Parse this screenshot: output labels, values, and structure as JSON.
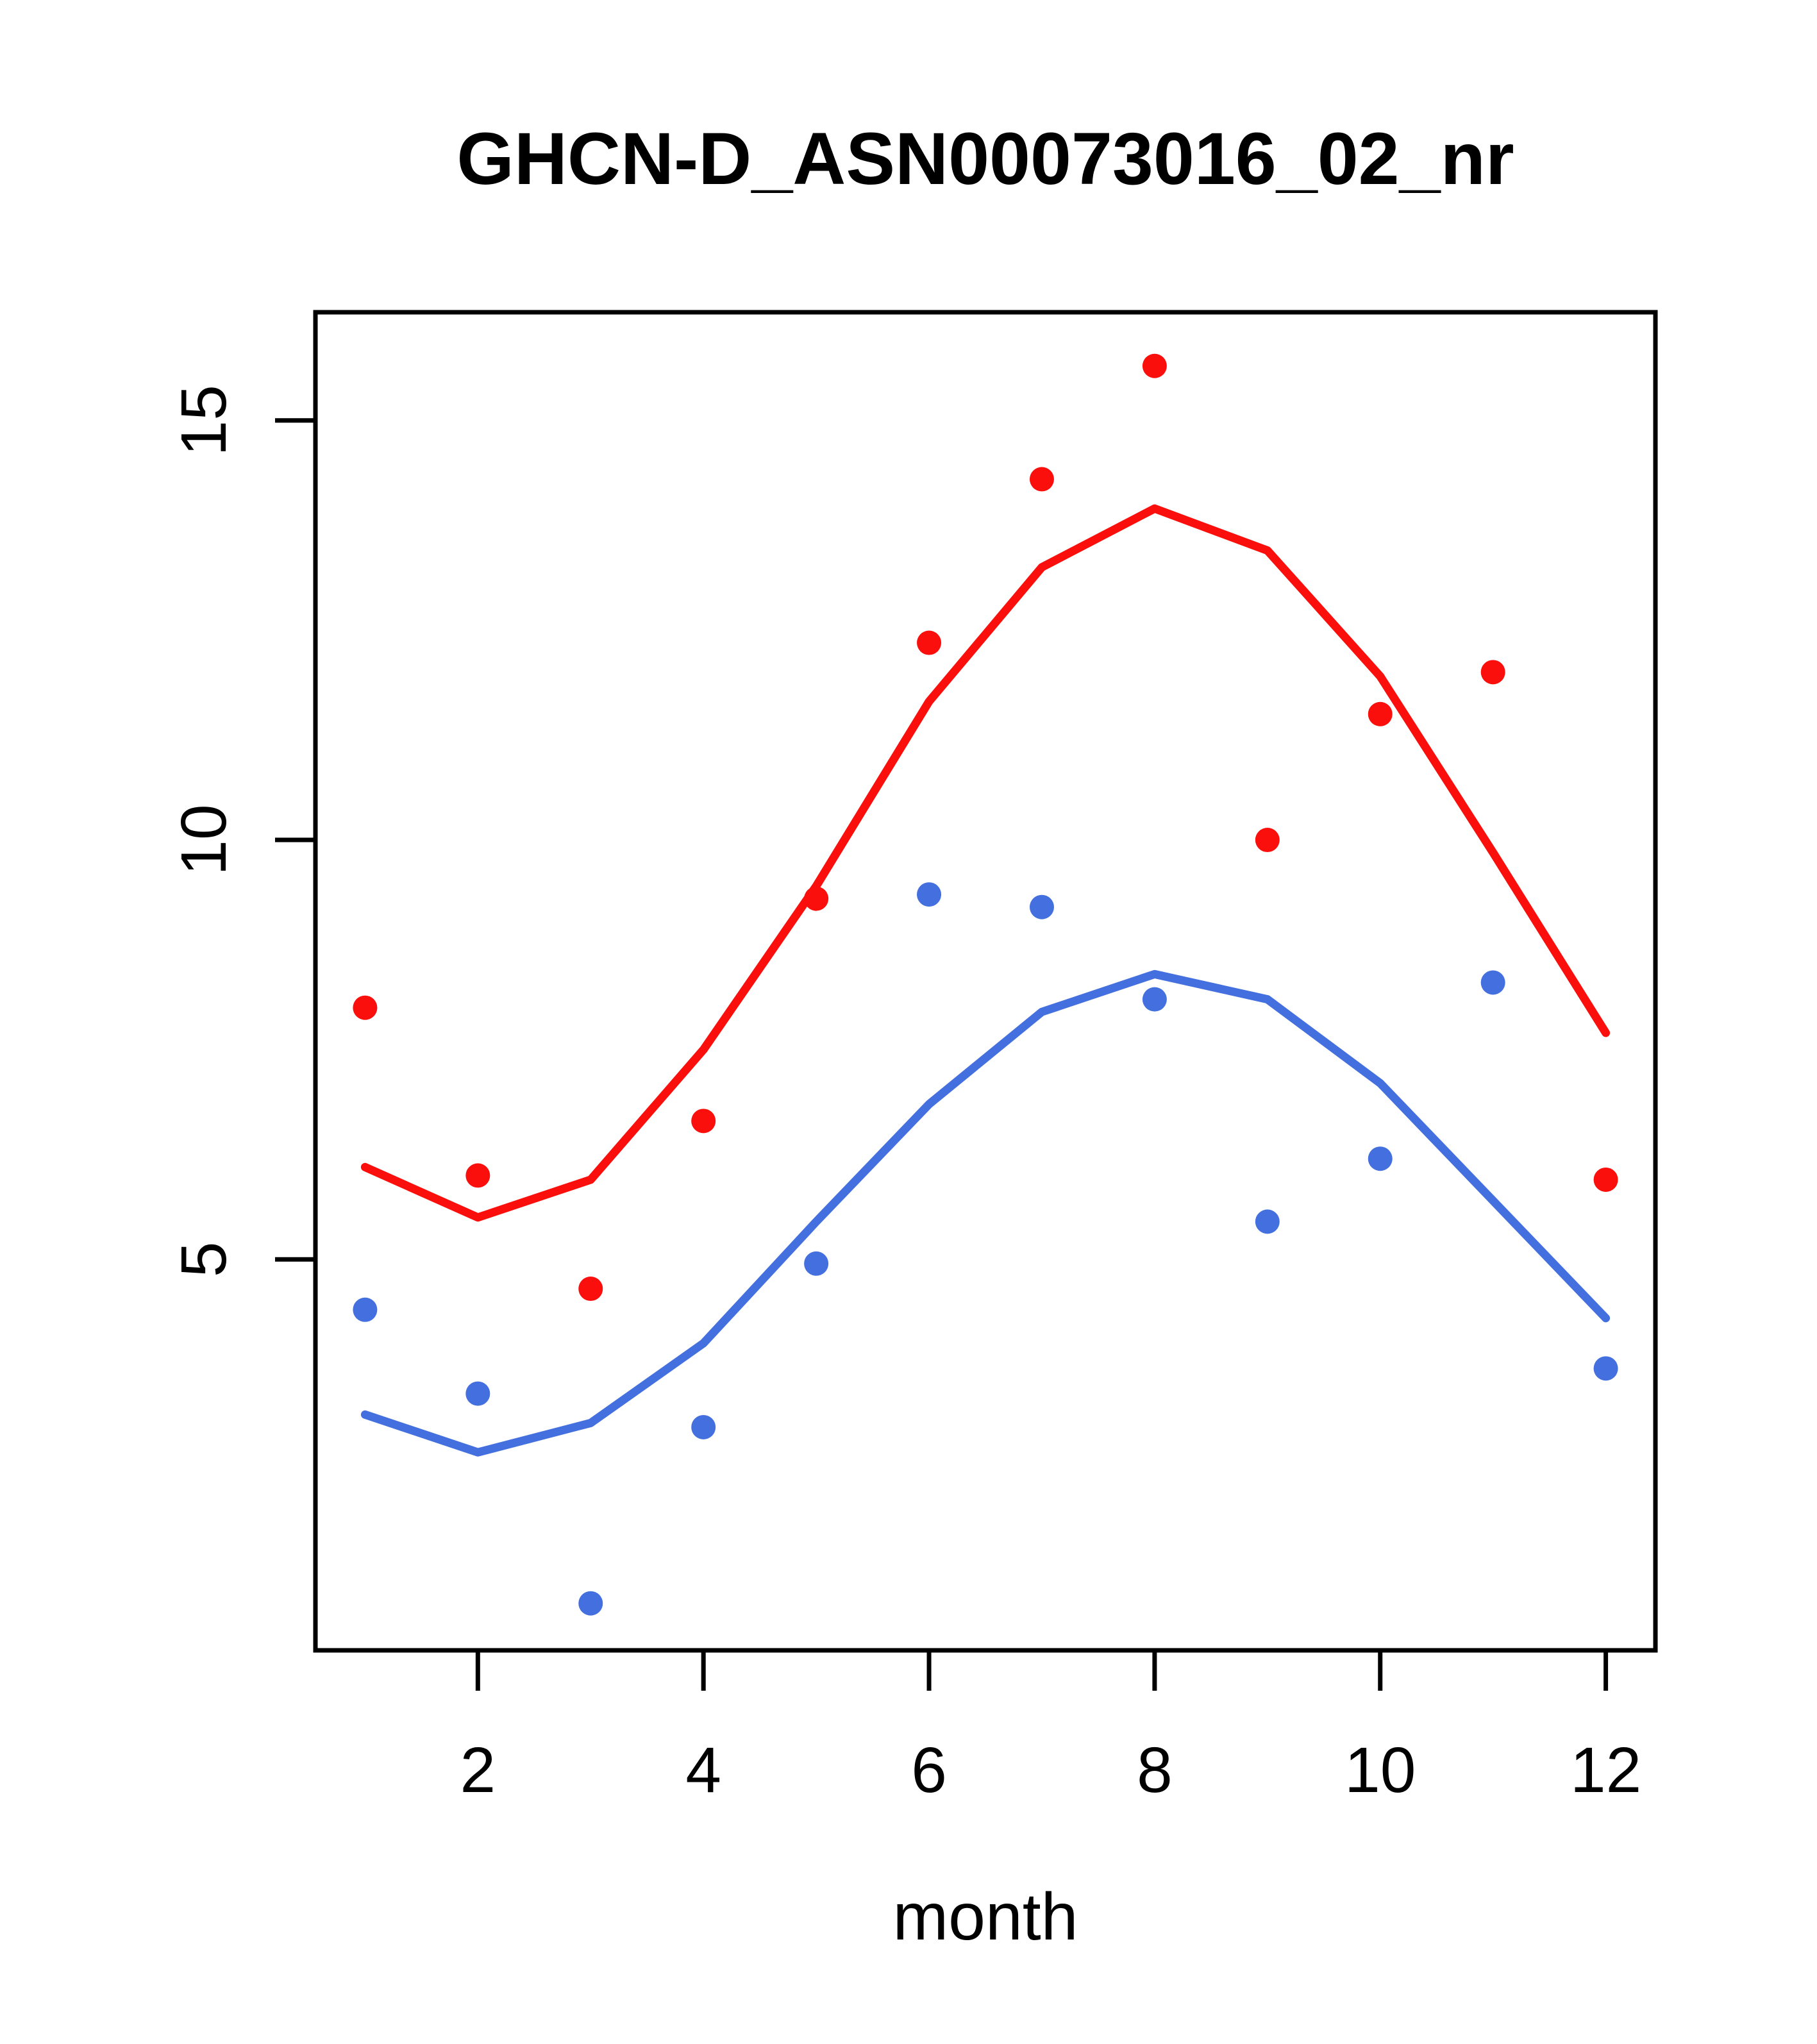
{
  "chart_data": {
    "type": "scatter",
    "title": "GHCN-D_ASN00073016_02_nr",
    "xlabel": "month",
    "ylabel": "",
    "x": [
      1,
      2,
      3,
      4,
      5,
      6,
      7,
      8,
      9,
      10,
      11,
      12
    ],
    "xticks": [
      2,
      4,
      6,
      8,
      10,
      12
    ],
    "yticks": [
      5,
      10,
      15
    ],
    "xlim": [
      0.56,
      12.44
    ],
    "ylim": [
      0.34,
      16.29
    ],
    "grid": false,
    "legend": "none",
    "colors": {
      "red": "#fa0f0c",
      "blue": "#4470df",
      "axis": "#000000"
    },
    "series": [
      {
        "name": "red-line-smooth",
        "type": "line",
        "color_key": "red",
        "values": [
          6.1,
          5.5,
          5.95,
          7.5,
          9.45,
          11.65,
          13.25,
          13.95,
          13.45,
          11.95,
          9.85,
          7.7
        ]
      },
      {
        "name": "blue-line-smooth",
        "type": "line",
        "color_key": "blue",
        "values": [
          3.15,
          2.7,
          3.05,
          4.0,
          5.45,
          6.85,
          7.95,
          8.4,
          8.1,
          7.1,
          5.7,
          4.3
        ]
      },
      {
        "name": "red-points",
        "type": "scatter",
        "color_key": "red",
        "values": [
          8.0,
          6.0,
          4.65,
          6.65,
          9.3,
          12.35,
          14.3,
          15.65,
          10.0,
          11.5,
          12.0,
          5.95
        ]
      },
      {
        "name": "blue-points",
        "type": "scatter",
        "color_key": "blue",
        "values": [
          4.4,
          3.4,
          0.9,
          3.0,
          4.95,
          9.35,
          9.2,
          8.1,
          5.45,
          6.2,
          8.3,
          3.7
        ]
      }
    ]
  }
}
